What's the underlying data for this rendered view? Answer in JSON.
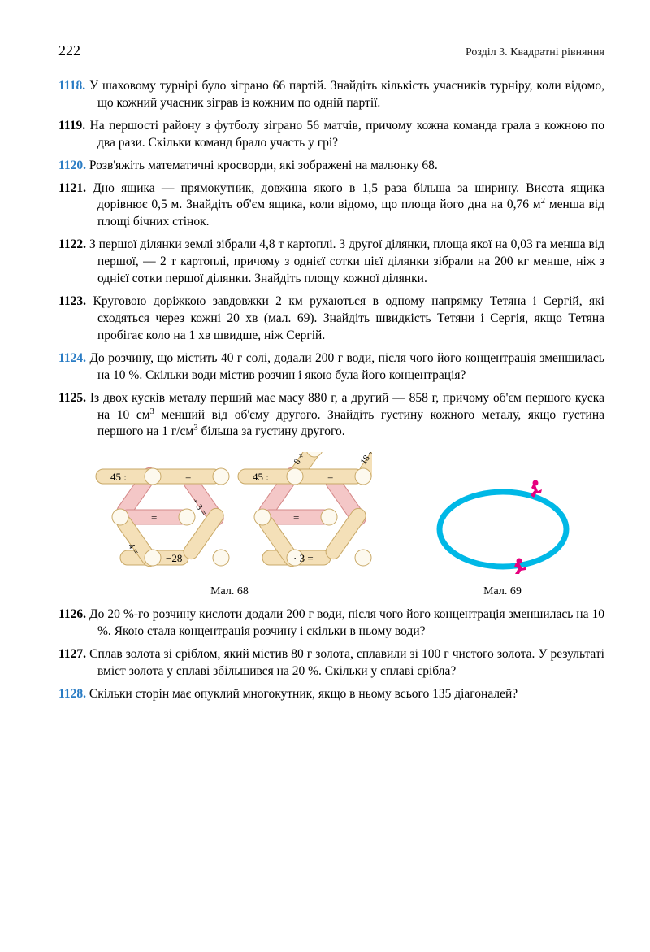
{
  "header": {
    "page_number": "222",
    "section": "Розділ 3. Квадратні рівняння"
  },
  "problems": [
    {
      "num": "1118.",
      "blue": true,
      "text": "У шаховому турнірі було зіграно 66 партій. Знайдіть кількість учасників турніру, коли відомо, що кожний учасник зіграв із кожним по одній партії."
    },
    {
      "num": "1119.",
      "blue": false,
      "text": "На першості району з футболу зіграно 56 матчів, причому кожна команда грала з кожною по два рази. Скільки команд брало участь у грі?"
    },
    {
      "num": "1120.",
      "blue": true,
      "text": "Розв'яжіть математичні кросворди, які зображені на малюнку 68."
    },
    {
      "num": "1121.",
      "blue": false,
      "text": "Дно ящика — прямокутник, довжина якого в 1,5 раза більша за ширину. Висота ящика дорівнює 0,5 м. Знайдіть об'єм ящика, коли відомо, що площа його дна на 0,76 м² менша від площі бічних стінок."
    },
    {
      "num": "1122.",
      "blue": false,
      "text": "З першої ділянки землі зібрали 4,8 т картоплі. З другої ділянки, площа якої на 0,03 га менша від першої, — 2 т картоплі, причому з однієї сотки цієї ділянки зібрали на 200 кг менше, ніж з однієї сотки першої ділянки. Знайдіть площу кожної ділянки."
    },
    {
      "num": "1123.",
      "blue": false,
      "text": "Круговою доріжкою завдовжки 2 км рухаються в одному напрямку Тетяна і Сергій, які сходяться через кожні 20 хв (мал. 69). Знайдіть швидкість Тетяни і Сергія, якщо Тетяна пробігає коло на 1 хв швидше, ніж Сергій."
    },
    {
      "num": "1124.",
      "blue": true,
      "text": "До розчину, що містить 40 г солі, додали 200 г води, після чого його концентрація зменшилась на 10 %. Скільки води містив розчин і якою була його концентрація?"
    },
    {
      "num": "1125.",
      "blue": false,
      "text": "Із двох кусків металу перший має масу 880 г, а другий — 858 г, причому об'єм першого куска на 10 см³ менший від об'єму другого. Знайдіть густину кожного металу, якщо густина першого на 1 г/см³ більша за густину другого."
    }
  ],
  "figure68": {
    "caption": "Мал. 68",
    "colors": {
      "cream": "#f4e0b8",
      "cream_stroke": "#c9a968",
      "pink": "#f4c7c7",
      "pink_stroke": "#d48888",
      "circle_fill": "#fdf9ee"
    },
    "left": {
      "top_label": "45 :",
      "bottom_label": "−28",
      "diag_left": "· 4 =",
      "diag_right": "+ 3 ="
    },
    "right": {
      "top_label": "45 :",
      "bottom_label": "· 3 =",
      "diag_left": "8 +",
      "diag_right": "18 +"
    }
  },
  "figure69": {
    "caption": "Мал. 69",
    "track_color": "#00b8e6",
    "runner_color": "#e6007e"
  },
  "problems2": [
    {
      "num": "1126.",
      "blue": false,
      "text": "До 20 %-го розчину кислоти додали 200 г води, після чого його концентрація зменшилась на 10 %. Якою стала концентрація розчину і скільки в ньому води?"
    },
    {
      "num": "1127.",
      "blue": false,
      "text": "Сплав золота зі сріблом, який містив 80 г золота, сплавили зі 100 г чистого золота. У результаті вміст золота у сплаві збільшився на 20 %. Скільки у сплаві срібла?"
    },
    {
      "num": "1128.",
      "blue": true,
      "text": "Скільки сторін має опуклий многокутник, якщо в ньому всього 135 діагоналей?"
    }
  ]
}
